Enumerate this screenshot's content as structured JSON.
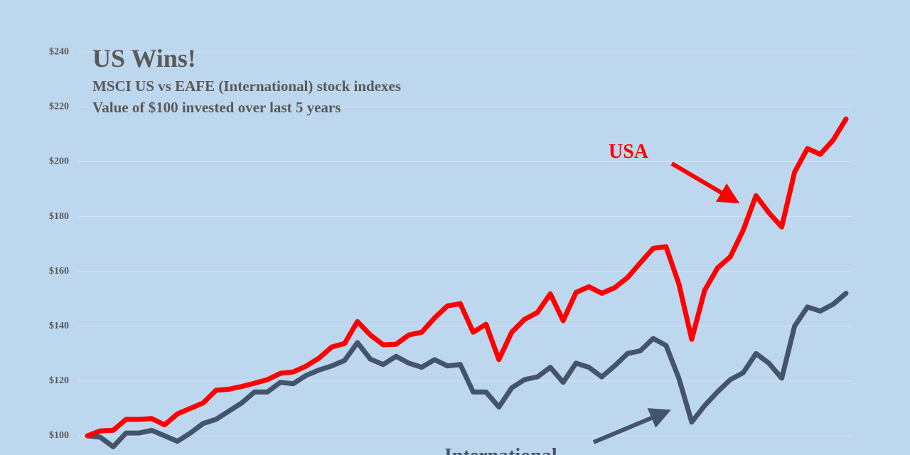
{
  "chart_data": {
    "type": "line",
    "title": "US Wins!",
    "subtitle": [
      "MSCI US vs EAFE (International) stock indexes",
      "Value of $100 invested over last 5 years"
    ],
    "ylim": [
      93,
      259
    ],
    "yticks": [
      {
        "value": 100,
        "label": "$100"
      },
      {
        "value": 120,
        "label": "$120"
      },
      {
        "value": 140,
        "label": "$140"
      },
      {
        "value": 160,
        "label": "$160"
      },
      {
        "value": 180,
        "label": "$180"
      },
      {
        "value": 200,
        "label": "$200"
      },
      {
        "value": 220,
        "label": "$220"
      },
      {
        "value": 240,
        "label": "$240"
      }
    ],
    "grid": true,
    "series": [
      {
        "name": "USA",
        "color": "#ff0000",
        "values": [
          100,
          101.8,
          102,
          106,
          106,
          106.3,
          104,
          108,
          110,
          112,
          116.6,
          117,
          118,
          119.2,
          120.5,
          122.8,
          123.3,
          125.4,
          128.3,
          132.4,
          133.7,
          141.7,
          136.8,
          133.2,
          133.4,
          136.8,
          137.8,
          143,
          147.4,
          148.2,
          137.8,
          140.7,
          127.8,
          137.8,
          142.5,
          145,
          151.8,
          142,
          152.3,
          154.4,
          152,
          154,
          157.7,
          163.1,
          168.4,
          169,
          155.4,
          135.2,
          153,
          161.2,
          165.3,
          175,
          187.6,
          181.4,
          176.2,
          196.2,
          204.8,
          202.7,
          207.9,
          215.6
        ]
      },
      {
        "name": "International",
        "color": "#44546a",
        "values": [
          100,
          99.5,
          96,
          101,
          101,
          102,
          100,
          98,
          101,
          104.5,
          106,
          109,
          112,
          116,
          116,
          119.5,
          119,
          122,
          124,
          125.5,
          127.5,
          134,
          128,
          126,
          129,
          126.5,
          125,
          127.8,
          125.5,
          126,
          116,
          116,
          110.5,
          117.5,
          120.5,
          121.5,
          125,
          119.5,
          126.5,
          125,
          121.5,
          125.5,
          130,
          131,
          135.5,
          133,
          121,
          105,
          111,
          116,
          120.5,
          123,
          130,
          126.5,
          121,
          140,
          147,
          145.5,
          148,
          152
        ]
      }
    ]
  }
}
